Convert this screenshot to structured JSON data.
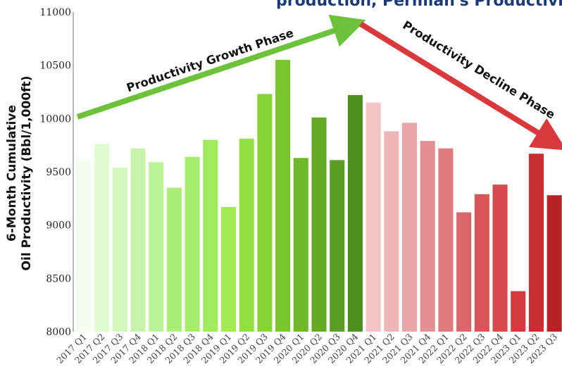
{
  "title_fragment": "production, Permian's Productivity",
  "chart_data": {
    "type": "bar",
    "ylabel_lines": [
      "6-Month Cumulative",
      "Oil Productivity (Bbl/1,000ft)"
    ],
    "ylim": [
      8000,
      11000
    ],
    "yticks": [
      8000,
      8500,
      9000,
      9500,
      10000,
      10500,
      11000
    ],
    "grid": false,
    "categories": [
      "2017 Q1",
      "2017 Q2",
      "2017 Q3",
      "2017 Q4",
      "2018 Q1",
      "2018 Q2",
      "2018 Q3",
      "2018 Q4",
      "2019 Q1",
      "2019 Q2",
      "2019 Q3",
      "2019 Q4",
      "2020 Q1",
      "2020 Q2",
      "2020 Q3",
      "2020 Q4",
      "2021 Q1",
      "2021 Q2",
      "2021 Q3",
      "2021 Q4",
      "2022 Q1",
      "2022 Q2",
      "2022 Q3",
      "2022 Q4",
      "2023 Q1",
      "2023 Q2",
      "2023 Q3"
    ],
    "values": [
      9620,
      9760,
      9540,
      9720,
      9590,
      9350,
      9640,
      9800,
      9170,
      9810,
      10230,
      10550,
      9630,
      10010,
      9610,
      10220,
      10150,
      9880,
      9960,
      9790,
      9720,
      9120,
      9290,
      9380,
      8380,
      9670,
      9280
    ],
    "colors": [
      "#f4fdef",
      "#e0fcd1",
      "#d2f8be",
      "#c6f4ac",
      "#b9f297",
      "#a9ef77",
      "#a6ed6c",
      "#a0eb5e",
      "#a2ea55",
      "#92e042",
      "#85d334",
      "#78c52d",
      "#6fb82a",
      "#65aa27",
      "#5c9e25",
      "#4e8e21",
      "#f3c5c6",
      "#efb6b7",
      "#eaa5a7",
      "#e48f92",
      "#e07a7e",
      "#dc676b",
      "#da5558",
      "#d6494c",
      "#d43b3e",
      "#c92e32",
      "#b52326"
    ],
    "annotations": [
      {
        "text": "Productivity Growth Phase",
        "color": "#6cc23a"
      },
      {
        "text": "Productivity Decline Phase",
        "color": "#d9383c"
      }
    ]
  }
}
